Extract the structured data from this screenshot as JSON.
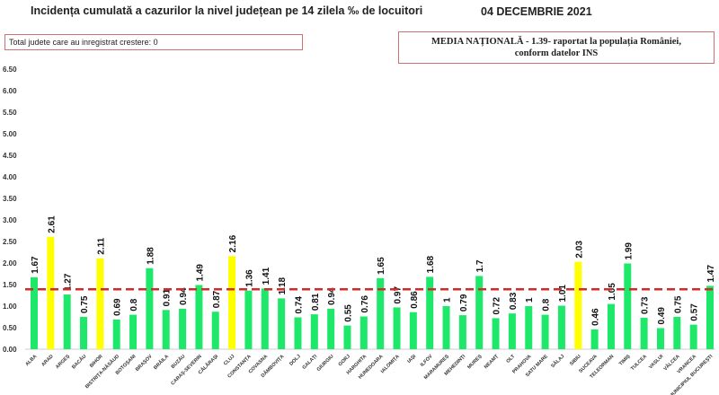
{
  "header": {
    "title": "Incidența cumulată a cazurilor la nivel județean pe 14 zilela ‰ de locuitori",
    "date": "04 DECEMBRIE 2021"
  },
  "info_box": "Total judete care au inregistrat crestere: 0",
  "national_box": {
    "line1": "MEDIA NAȚIONALĂ - 1.39- raportat la populația României,",
    "line2": "conform datelor INS"
  },
  "chart_data": {
    "type": "bar",
    "title": "Incidența cumulată a cazurilor la nivel județean pe 14 zilela ‰ de locuitori",
    "categories": [
      "ALBA",
      "ARAD",
      "ARGEȘ",
      "BACĂU",
      "BIHOR",
      "BISTRIȚA-NĂSĂUD",
      "BOTOȘANI",
      "BRAȘOV",
      "BRĂILA",
      "BUZĂU",
      "CARAȘ-SEVERIN",
      "CĂLĂRAȘI",
      "CLUJ",
      "CONSTANȚA",
      "COVASNA",
      "DÂMBOVIȚA",
      "DOLJ",
      "GALAȚI",
      "GIURGIU",
      "GORJ",
      "HARGHITA",
      "HUNEDOARA",
      "IALOMIȚA",
      "IAȘI",
      "ILFOV",
      "MARAMUREȘ",
      "MEHEDINȚI",
      "MUREȘ",
      "NEAMȚ",
      "OLT",
      "PRAHOVA",
      "SATU MARE",
      "SĂLAJ",
      "SIBIU",
      "SUCEAVA",
      "TELEORMAN",
      "TIMIȘ",
      "TULCEA",
      "VASLUI",
      "VÂLCEA",
      "VRANCEA",
      "MUNICIPIUL BUCUREȘTI"
    ],
    "values": [
      1.67,
      2.61,
      1.27,
      0.75,
      2.11,
      0.69,
      0.8,
      1.88,
      0.91,
      0.94,
      1.49,
      0.87,
      2.16,
      1.36,
      1.41,
      1.18,
      0.74,
      0.81,
      0.94,
      0.55,
      0.76,
      1.65,
      0.97,
      0.86,
      1.68,
      1,
      0.79,
      1.7,
      0.72,
      0.83,
      1,
      0.8,
      1.01,
      2.03,
      0.46,
      1.05,
      1.99,
      0.73,
      0.49,
      0.75,
      0.57,
      1.47
    ],
    "value_labels": [
      "1.67",
      "2.61",
      "1.27",
      "0.75",
      "2.11",
      "0.69",
      "0.8",
      "1.88",
      "0.91",
      "0.94",
      "1.49",
      "0.87",
      "2.16",
      "1.36",
      "1.41",
      "1.18",
      "0.74",
      "0.81",
      "0.94",
      "0.55",
      "0.76",
      "1.65",
      "0.97",
      "0.86",
      "1.68",
      "1",
      "0.79",
      "1.7",
      "0.72",
      "0.83",
      "1",
      "0.8",
      "1.01",
      "2.03",
      "0.46",
      "1.05",
      "1.99",
      "0.73",
      "0.49",
      "0.75",
      "0.57",
      "1.47"
    ],
    "ylim": [
      0,
      6.5
    ],
    "yticks": [
      "0.00",
      "0.50",
      "1.00",
      "1.50",
      "2.00",
      "2.50",
      "3.00",
      "3.50",
      "4.00",
      "4.50",
      "5.00",
      "5.50",
      "6.00",
      "6.50"
    ],
    "reference_line": 1.39,
    "highlight_threshold": 2.0,
    "colors": {
      "normal": "#1ee86a",
      "highlight": "#ffff00",
      "reference": "#d42a2a"
    }
  }
}
